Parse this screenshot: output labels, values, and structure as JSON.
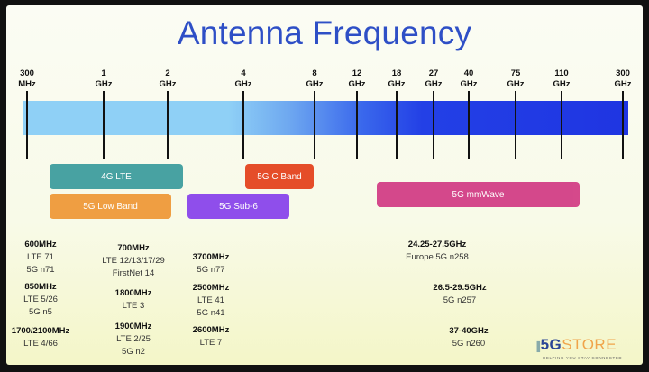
{
  "title": "Antenna Frequency",
  "ticks": [
    {
      "value": "300",
      "unit": "MHz"
    },
    {
      "value": "1",
      "unit": "GHz"
    },
    {
      "value": "2",
      "unit": "GHz"
    },
    {
      "value": "4",
      "unit": "GHz"
    },
    {
      "value": "8",
      "unit": "GHz"
    },
    {
      "value": "12",
      "unit": "GHz"
    },
    {
      "value": "18",
      "unit": "GHz"
    },
    {
      "value": "27",
      "unit": "GHz"
    },
    {
      "value": "40",
      "unit": "GHz"
    },
    {
      "value": "75",
      "unit": "GHz"
    },
    {
      "value": "110",
      "unit": "GHz"
    },
    {
      "value": "300",
      "unit": "GHz"
    }
  ],
  "bands": [
    {
      "label": "4G LTE",
      "color": "#3f9e9f"
    },
    {
      "label": "5G Low Band",
      "color": "#ef9a3a"
    },
    {
      "label": "5G C Band",
      "color": "#e4441f"
    },
    {
      "label": "5G Sub-6",
      "color": "#8a45ec"
    },
    {
      "label": "5G mmWave",
      "color": "#d33f86"
    }
  ],
  "details": [
    {
      "freq": "600MHz",
      "lines": [
        "LTE 71",
        "5G n71"
      ]
    },
    {
      "freq": "850MHz",
      "lines": [
        "LTE 5/26",
        "5G n5"
      ]
    },
    {
      "freq": "1700/2100MHz",
      "lines": [
        "LTE 4/66"
      ]
    },
    {
      "freq": "700MHz",
      "lines": [
        "LTE 12/13/17/29",
        "FirstNet 14"
      ]
    },
    {
      "freq": "1800MHz",
      "lines": [
        "LTE 3"
      ]
    },
    {
      "freq": "1900MHz",
      "lines": [
        "LTE 2/25",
        "5G n2"
      ]
    },
    {
      "freq": "3700MHz",
      "lines": [
        "5G n77"
      ]
    },
    {
      "freq": "2500MHz",
      "lines": [
        "LTE 41",
        "5G n41"
      ]
    },
    {
      "freq": "2600MHz",
      "lines": [
        "LTE 7"
      ]
    },
    {
      "freq": "24.25-27.5GHz",
      "lines": [
        "Europe 5G n258"
      ]
    },
    {
      "freq": "26.5-29.5GHz",
      "lines": [
        "5G n257"
      ]
    },
    {
      "freq": "37-40GHz",
      "lines": [
        "5G n260"
      ]
    }
  ],
  "logo": {
    "brand_5g": "5G",
    "brand_store": "STORE",
    "tagline": "HELPING YOU STAY CONNECTED"
  }
}
